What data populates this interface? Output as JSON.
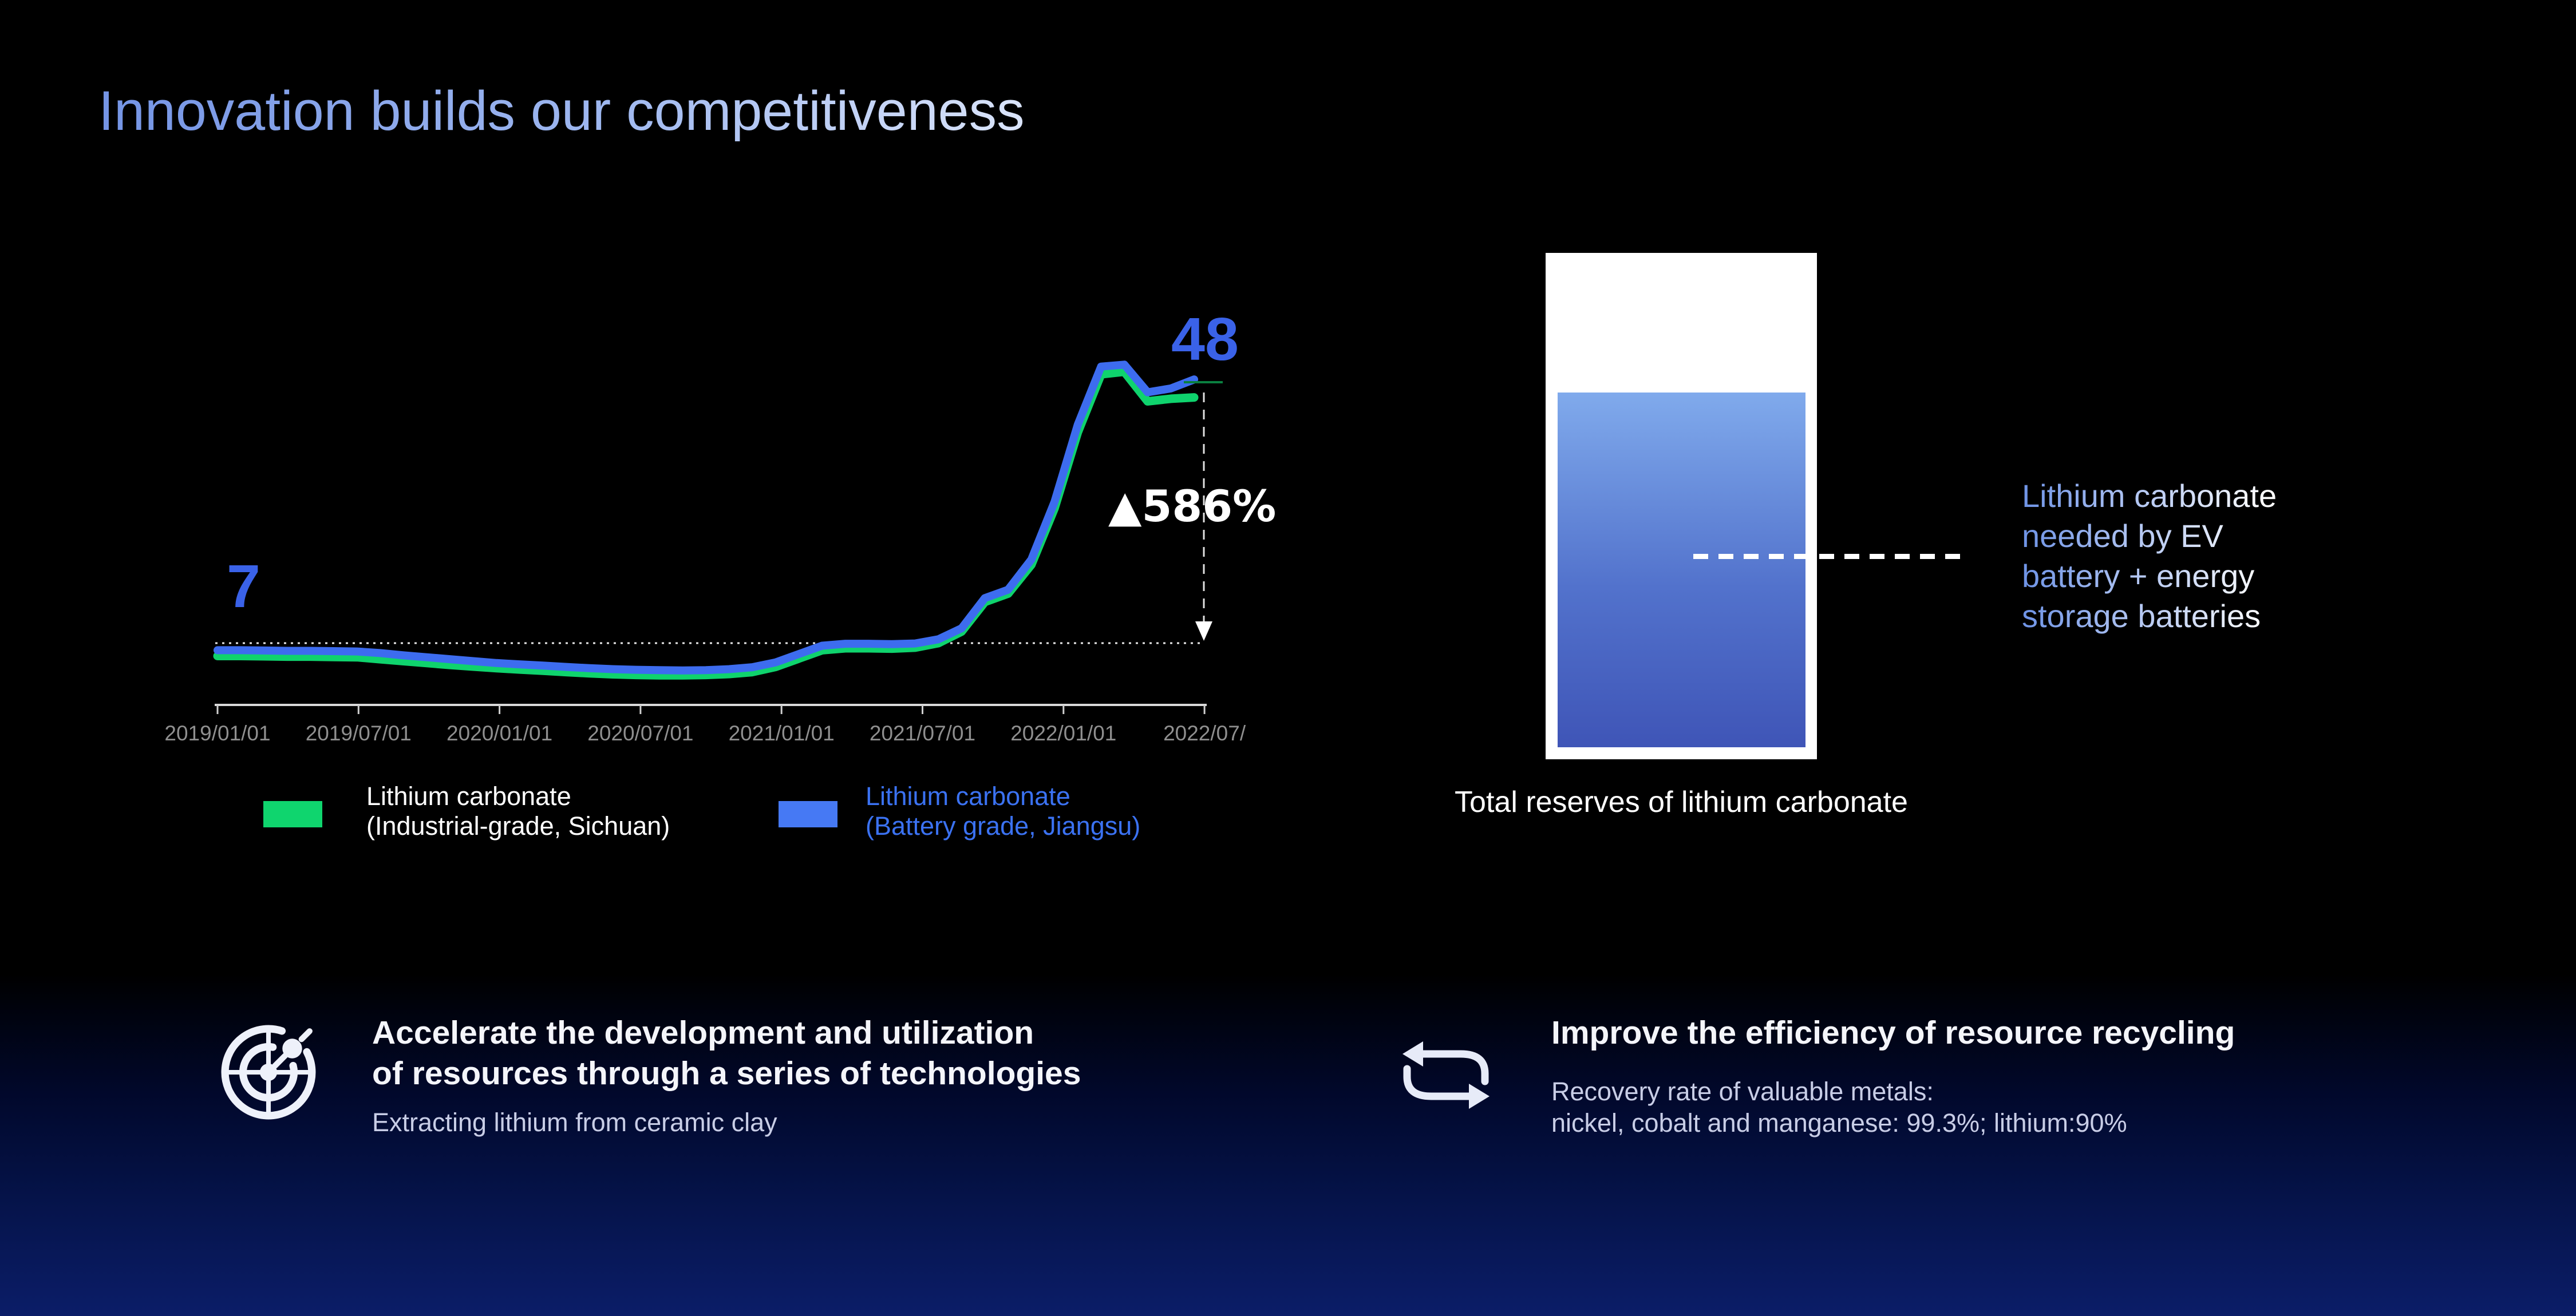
{
  "title": "Innovation builds our competitiveness",
  "chart": {
    "start_label": "7",
    "end_label": "48",
    "change_label": "▲586%",
    "x_ticks": [
      "2019/01/01",
      "2019/07/01",
      "2020/01/01",
      "2020/07/01",
      "2021/01/01",
      "2021/07/01",
      "2022/01/01",
      "2022/07/"
    ],
    "legend": [
      {
        "line1": "Lithium carbonate",
        "line2": "(Industrial-grade, Sichuan)",
        "swatch_color": "#0fd56e",
        "text_color": "#ffffff"
      },
      {
        "line1": "Lithium carbonate",
        "line2": "(Battery grade, Jiangsu)",
        "swatch_color": "#4679f4",
        "text_color": "#3b72f2"
      }
    ]
  },
  "chart_data": {
    "type": "line",
    "title": "",
    "xlabel": "",
    "ylabel": "",
    "grid": false,
    "legend_position": "bottom",
    "ylim": [
      0,
      52
    ],
    "baseline_value": 7,
    "annotations": {
      "start_value": 7,
      "end_value": 48,
      "change_percent": "+586%"
    },
    "x": [
      "2019/01",
      "2019/02",
      "2019/03",
      "2019/04",
      "2019/05",
      "2019/06",
      "2019/07",
      "2019/08",
      "2019/09",
      "2019/10",
      "2019/11",
      "2019/12",
      "2020/01",
      "2020/02",
      "2020/03",
      "2020/04",
      "2020/05",
      "2020/06",
      "2020/07",
      "2020/08",
      "2020/09",
      "2020/10",
      "2020/11",
      "2020/12",
      "2021/01",
      "2021/02",
      "2021/03",
      "2021/04",
      "2021/05",
      "2021/06",
      "2021/07",
      "2021/08",
      "2021/09",
      "2021/10",
      "2021/11",
      "2021/12",
      "2022/01",
      "2022/02",
      "2022/03",
      "2022/04",
      "2022/05",
      "2022/06",
      "2022/07"
    ],
    "series": [
      {
        "name": "Lithium carbonate (Industrial-grade, Sichuan)",
        "color": "#0fd36d",
        "stroke_width": 15,
        "values": [
          5.0,
          5.0,
          4.95,
          4.9,
          4.9,
          4.85,
          4.8,
          4.5,
          4.2,
          3.9,
          3.6,
          3.35,
          3.1,
          2.9,
          2.7,
          2.5,
          2.3,
          2.15,
          2.05,
          2.0,
          2.0,
          2.05,
          2.2,
          2.5,
          3.3,
          4.6,
          5.9,
          6.2,
          6.2,
          6.15,
          6.3,
          7.0,
          8.8,
          13.4,
          14.7,
          19.2,
          28.0,
          39.8,
          48.8,
          49.2,
          44.6,
          45.0,
          45.2
        ]
      },
      {
        "name": "Lithium carbonate (Battery grade, Jiangsu)",
        "color": "#3d6cef",
        "stroke_width": 14,
        "values": [
          5.9,
          5.9,
          5.85,
          5.8,
          5.8,
          5.75,
          5.7,
          5.45,
          5.1,
          4.8,
          4.5,
          4.2,
          3.9,
          3.7,
          3.5,
          3.3,
          3.1,
          2.95,
          2.85,
          2.8,
          2.75,
          2.8,
          2.95,
          3.25,
          4.0,
          5.3,
          6.6,
          6.9,
          6.9,
          6.85,
          6.95,
          7.6,
          9.3,
          14.0,
          15.3,
          20.0,
          29.0,
          41.0,
          50.0,
          50.3,
          46.0,
          46.6,
          48.0
        ]
      }
    ]
  },
  "reserves": {
    "caption": "Total reserves of lithium carbonate",
    "fill_percent": 70,
    "note_lines": [
      "Lithium carbonate",
      "needed by EV",
      "battery + energy",
      "storage batteries"
    ]
  },
  "features": [
    {
      "icon": "radar-target-icon",
      "title_lines": [
        "Accelerate the development and utilization",
        "of resources through a series of technologies"
      ],
      "subtitle_lines": [
        "Extracting lithium from ceramic clay"
      ]
    },
    {
      "icon": "recycle-arrows-icon",
      "title_lines": [
        "Improve the efficiency of resource recycling"
      ],
      "subtitle_lines": [
        "Recovery rate of valuable metals:",
        "nickel, cobalt and  manganese: 99.3%; lithium:90%"
      ]
    }
  ]
}
